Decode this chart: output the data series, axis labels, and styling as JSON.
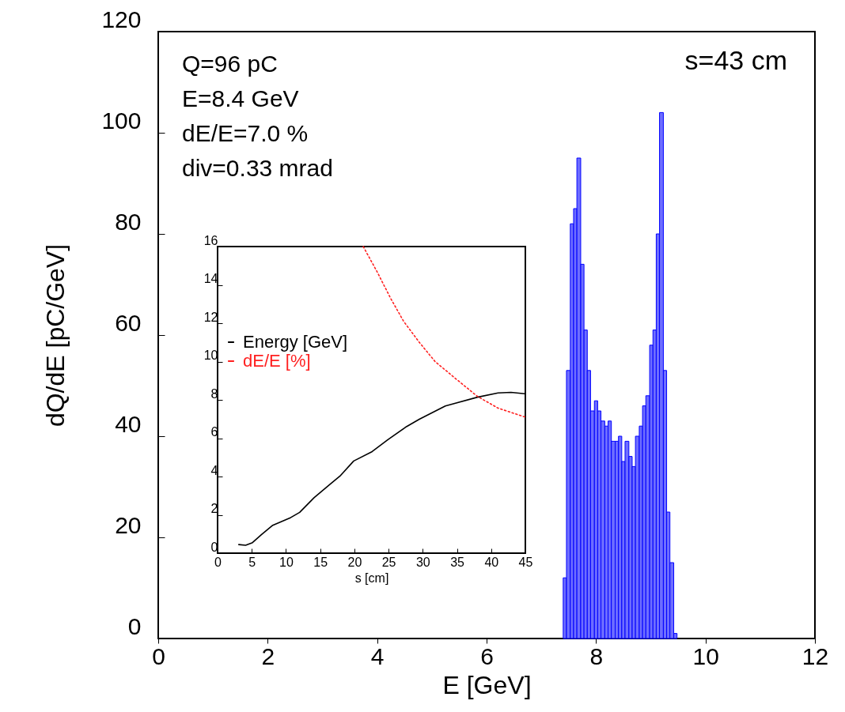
{
  "chart_data": [
    {
      "type": "histogram",
      "xlabel": "E [GeV]",
      "ylabel": "dQ/dE [pC/GeV]",
      "color": "#6666ff",
      "bins": [
        7.4,
        7.46,
        7.53,
        7.59,
        7.65,
        7.72,
        7.78,
        7.84,
        7.9,
        7.97,
        8.03,
        8.09,
        8.16,
        8.22,
        8.28,
        8.35,
        8.41,
        8.47,
        8.53,
        8.6,
        8.66,
        8.72,
        8.79,
        8.85,
        8.91,
        8.98,
        9.04,
        9.1,
        9.16,
        9.23,
        9.29,
        9.35,
        9.42,
        9.48
      ],
      "values": [
        12,
        53,
        82,
        85,
        95,
        74,
        61,
        53,
        45,
        47,
        45,
        43,
        42,
        43,
        39,
        39,
        40,
        35,
        39,
        36,
        34,
        40,
        42,
        46,
        48,
        58,
        61,
        80,
        104,
        53,
        25,
        15,
        1
      ],
      "xlim": [
        0,
        12
      ],
      "xticks": [
        0,
        2,
        4,
        6,
        8,
        10,
        12
      ],
      "ylim": [
        0,
        120
      ],
      "yticks": [
        0,
        20,
        40,
        60,
        80,
        100,
        120
      ],
      "annotations": [
        "Q=96 pC",
        "E=8.4 GeV",
        "dE/E=7.0 %",
        "div=0.33 mrad",
        "s=43 cm"
      ]
    },
    {
      "type": "line",
      "xlabel": "s [cm]",
      "xlim": [
        0,
        45
      ],
      "xticks": [
        0,
        5,
        10,
        15,
        20,
        25,
        30,
        35,
        40,
        45
      ],
      "ylim": [
        0,
        16
      ],
      "yticks": [
        0,
        2,
        4,
        6,
        8,
        10,
        12,
        14,
        16
      ],
      "legend": "left",
      "series": [
        {
          "name": "Energy [GeV]",
          "color": "#000000",
          "line_style": "solid",
          "x": [
            3.1,
            4.1,
            5.1,
            6.4,
            8.0,
            10.7,
            12.0,
            14.1,
            16.4,
            18.0,
            19.9,
            22.6,
            24.9,
            27.6,
            29.5,
            33.3,
            38.0,
            41.0,
            42.9,
            44.9
          ],
          "values": [
            0.45,
            0.41,
            0.55,
            0.96,
            1.44,
            1.86,
            2.13,
            2.89,
            3.58,
            4.06,
            4.81,
            5.3,
            5.92,
            6.6,
            6.99,
            7.68,
            8.14,
            8.36,
            8.39,
            8.32
          ]
        },
        {
          "name": "dE/E [%]",
          "color": "#ff2020",
          "line_style": "dotted",
          "x": [
            21.3,
            23.3,
            25.3,
            27.2,
            29.5,
            31.8,
            34.9,
            38.0,
            41.0,
            44.9
          ],
          "values": [
            16.0,
            14.7,
            13.3,
            12.1,
            11.0,
            10.0,
            9.08,
            8.18,
            7.57,
            7.11
          ]
        }
      ]
    }
  ]
}
